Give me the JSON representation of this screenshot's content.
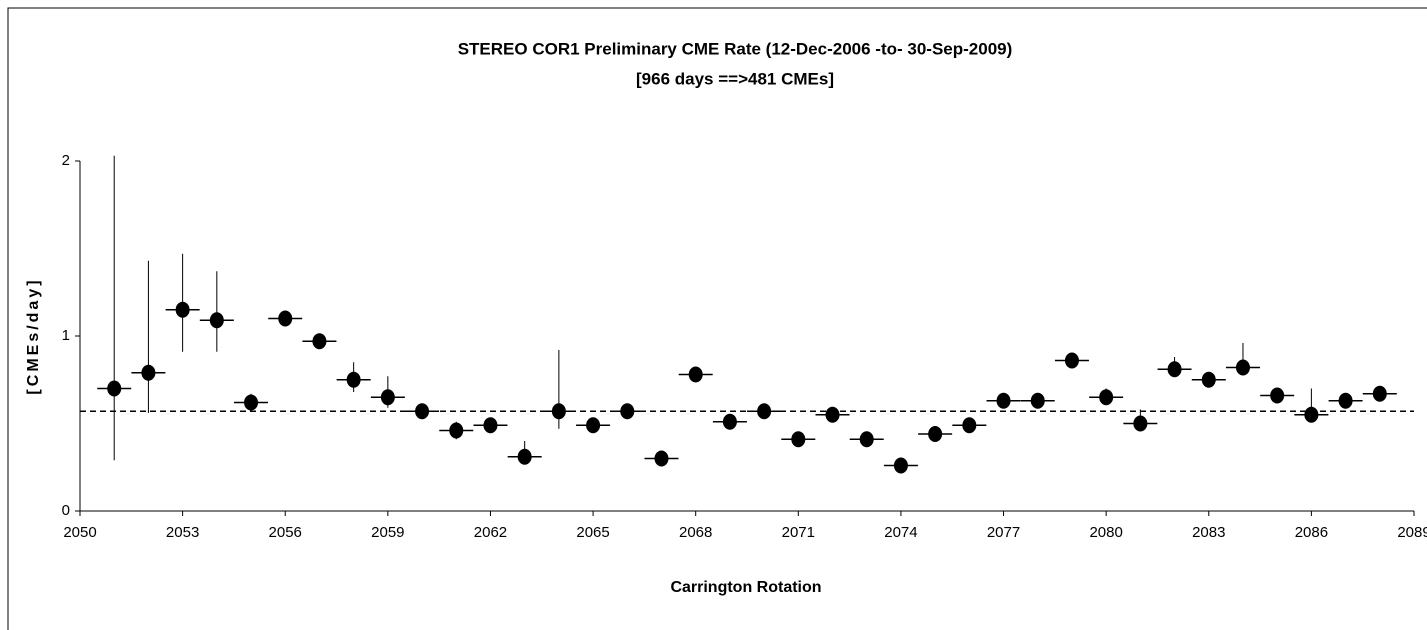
{
  "chart_data": {
    "type": "scatter",
    "title": "STEREO COR1 Preliminary CME Rate (12-Dec-2006  -to-  30-Sep-2009)",
    "subtitle": "[966 days ==>481 CMEs]",
    "x_label": "Carrington Rotation",
    "y_label": "[CMEs/day]",
    "color": "#000000",
    "x": [
      2051,
      2052,
      2053,
      2054,
      2055,
      2056,
      2057,
      2058,
      2059,
      2060,
      2061,
      2062,
      2063,
      2064,
      2065,
      2066,
      2067,
      2068,
      2069,
      2070,
      2071,
      2072,
      2073,
      2074,
      2075,
      2076,
      2077,
      2078,
      2079,
      2080,
      2081,
      2082,
      2083,
      2084,
      2085,
      2086,
      2087,
      2088
    ],
    "y": [
      0.7,
      0.79,
      1.15,
      1.09,
      0.62,
      1.1,
      0.97,
      0.75,
      0.65,
      0.57,
      0.46,
      0.49,
      0.31,
      0.57,
      0.49,
      0.57,
      0.3,
      0.78,
      0.51,
      0.57,
      0.41,
      0.55,
      0.41,
      0.26,
      0.44,
      0.49,
      0.63,
      0.63,
      0.86,
      0.65,
      0.5,
      0.81,
      0.75,
      0.82,
      0.66,
      0.55,
      0.63,
      0.67
    ],
    "err_high": [
      1.33,
      0.64,
      0.32,
      0.28,
      0.05,
      0.02,
      0.02,
      0.1,
      0.12,
      0.03,
      0.05,
      0.02,
      0.09,
      0.35,
      0.02,
      0.03,
      0.01,
      0.02,
      0.02,
      0.03,
      0.02,
      0.02,
      0.02,
      0.02,
      0.02,
      0.02,
      0.02,
      0.02,
      0.02,
      0.05,
      0.08,
      0.07,
      0.04,
      0.14,
      0.02,
      0.15,
      0.02,
      0.02
    ],
    "err_low": [
      0.41,
      0.23,
      0.24,
      0.18,
      0.05,
      0.02,
      0.02,
      0.07,
      0.06,
      0.03,
      0.05,
      0.02,
      0.03,
      0.1,
      0.02,
      0.03,
      0.01,
      0.02,
      0.02,
      0.03,
      0.02,
      0.02,
      0.02,
      0.02,
      0.02,
      0.02,
      0.02,
      0.02,
      0.02,
      0.03,
      0.02,
      0.03,
      0.03,
      0.04,
      0.02,
      0.03,
      0.02,
      0.02
    ],
    "reference_line": 0.57,
    "xlim": [
      2050,
      2089
    ],
    "xticks": [
      2050,
      2053,
      2056,
      2059,
      2062,
      2065,
      2068,
      2071,
      2074,
      2077,
      2080,
      2083,
      2086,
      2089
    ],
    "ylim": [
      0,
      2
    ],
    "yticks": [
      0,
      1,
      2
    ]
  }
}
